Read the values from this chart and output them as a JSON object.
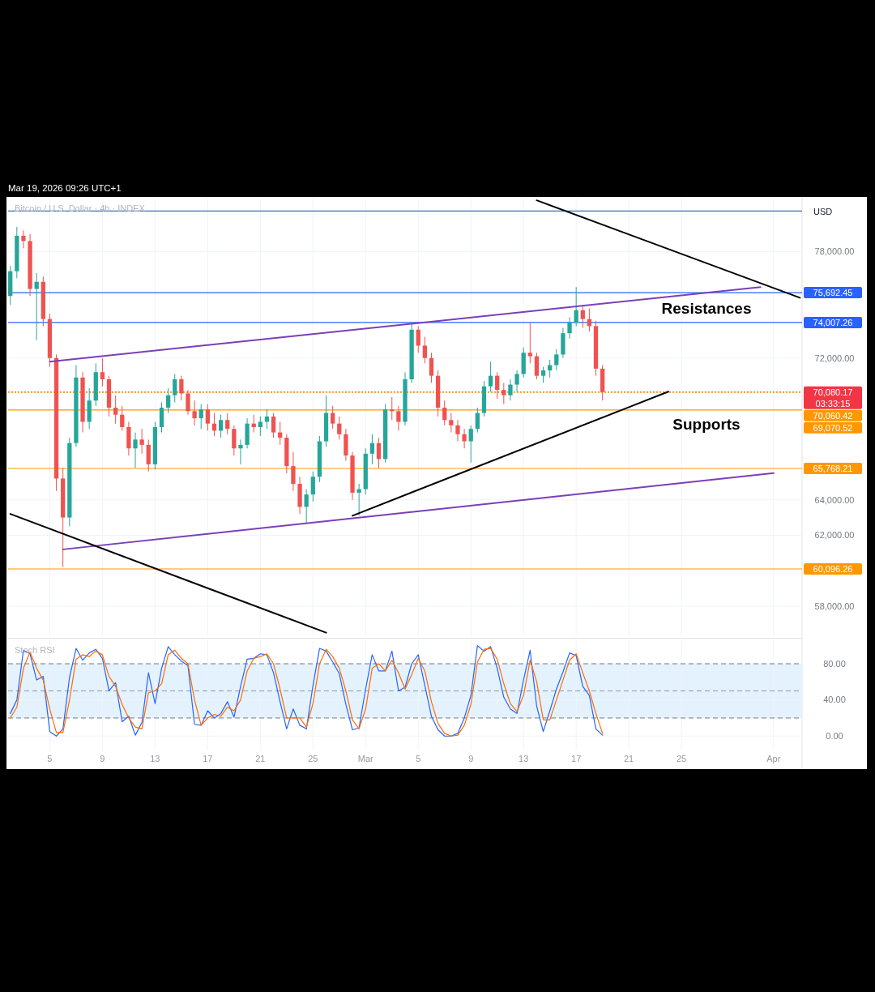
{
  "chart_data": [
    {
      "type": "candlestick",
      "title": "Bitcoin / U.S. Dollar · 4h · INDEX",
      "ylabel": "USD",
      "tick_labels": "y",
      "grid": true,
      "xlim": [
        "2026-02-01T20:00",
        "2026-04-03T04:00"
      ],
      "ylim": [
        56300,
        81000
      ],
      "xticks": [
        "2026-02-05",
        "2026-02-09",
        "2026-02-13",
        "2026-02-17",
        "2026-02-21",
        "2026-02-25",
        "2026-03-01",
        "2026-03-05",
        "2026-03-09",
        "2026-03-13",
        "2026-03-17",
        "2026-03-21",
        "2026-03-25",
        "2026-04-01"
      ],
      "yticks": [
        {
          "value": 58000,
          "label": "58,000.00"
        },
        {
          "value": 62000,
          "label": "62,000.00"
        },
        {
          "value": 64000,
          "label": "64,000.00"
        },
        {
          "value": 72000,
          "label": "72,000.00"
        },
        {
          "value": 78000,
          "label": "78,000.00"
        }
      ],
      "x": [
        "2026-02-02T00:00",
        "2026-02-02T12:00",
        "2026-02-03T00:00",
        "2026-02-03T12:00",
        "2026-02-04T00:00",
        "2026-02-04T12:00",
        "2026-02-05T00:00",
        "2026-02-05T12:00",
        "2026-02-06T00:00",
        "2026-02-06T12:00",
        "2026-02-07T00:00",
        "2026-02-07T12:00",
        "2026-02-08T00:00",
        "2026-02-08T12:00",
        "2026-02-09T00:00",
        "2026-02-09T12:00",
        "2026-02-10T00:00",
        "2026-02-10T12:00",
        "2026-02-11T00:00",
        "2026-02-11T12:00",
        "2026-02-12T00:00",
        "2026-02-12T12:00",
        "2026-02-13T00:00",
        "2026-02-13T12:00",
        "2026-02-14T00:00",
        "2026-02-14T12:00",
        "2026-02-15T00:00",
        "2026-02-15T12:00",
        "2026-02-16T00:00",
        "2026-02-16T12:00",
        "2026-02-17T00:00",
        "2026-02-17T12:00",
        "2026-02-18T00:00",
        "2026-02-18T12:00",
        "2026-02-19T00:00",
        "2026-02-19T12:00",
        "2026-02-20T00:00",
        "2026-02-20T12:00",
        "2026-02-21T00:00",
        "2026-02-21T12:00",
        "2026-02-22T00:00",
        "2026-02-22T12:00",
        "2026-02-23T00:00",
        "2026-02-23T12:00",
        "2026-02-24T00:00",
        "2026-02-24T12:00",
        "2026-02-25T00:00",
        "2026-02-25T12:00",
        "2026-02-26T00:00",
        "2026-02-26T12:00",
        "2026-02-27T00:00",
        "2026-02-27T12:00",
        "2026-02-28T00:00",
        "2026-02-28T12:00",
        "2026-03-01T00:00",
        "2026-03-01T12:00",
        "2026-03-02T00:00",
        "2026-03-02T12:00",
        "2026-03-03T00:00",
        "2026-03-03T12:00",
        "2026-03-04T00:00",
        "2026-03-04T12:00",
        "2026-03-05T00:00",
        "2026-03-05T12:00",
        "2026-03-06T00:00",
        "2026-03-06T12:00",
        "2026-03-07T00:00",
        "2026-03-07T12:00",
        "2026-03-08T00:00",
        "2026-03-08T12:00",
        "2026-03-09T00:00",
        "2026-03-09T12:00",
        "2026-03-10T00:00",
        "2026-03-10T12:00",
        "2026-03-11T00:00",
        "2026-03-11T12:00",
        "2026-03-12T00:00",
        "2026-03-12T12:00",
        "2026-03-13T00:00",
        "2026-03-13T12:00",
        "2026-03-14T00:00",
        "2026-03-14T12:00",
        "2026-03-15T00:00",
        "2026-03-15T12:00",
        "2026-03-16T00:00",
        "2026-03-16T12:00",
        "2026-03-17T00:00",
        "2026-03-17T12:00",
        "2026-03-18T00:00",
        "2026-03-18T12:00",
        "2026-03-19T00:00"
      ],
      "ohlc": [
        [
          75500,
          77200,
          75000,
          76900
        ],
        [
          76900,
          79400,
          76500,
          78900
        ],
        [
          78900,
          79200,
          78200,
          78600
        ],
        [
          78600,
          79000,
          75500,
          75900
        ],
        [
          75900,
          76800,
          73000,
          76300
        ],
        [
          76300,
          76600,
          73800,
          74200
        ],
        [
          74200,
          74500,
          71500,
          72000
        ],
        [
          72000,
          72200,
          64500,
          65200
        ],
        [
          65200,
          65800,
          60200,
          63000
        ],
        [
          63000,
          67500,
          62500,
          67200
        ],
        [
          67200,
          71600,
          67000,
          70900
        ],
        [
          70900,
          71200,
          67800,
          68400
        ],
        [
          68400,
          70300,
          68000,
          69600
        ],
        [
          69600,
          71700,
          69300,
          71200
        ],
        [
          71200,
          72000,
          70400,
          70800
        ],
        [
          70800,
          71000,
          68700,
          69200
        ],
        [
          69200,
          69900,
          68300,
          68800
        ],
        [
          68800,
          69300,
          67900,
          68100
        ],
        [
          68100,
          68400,
          66500,
          66900
        ],
        [
          66900,
          67800,
          65800,
          67400
        ],
        [
          67400,
          68000,
          66600,
          67100
        ],
        [
          67100,
          67400,
          65600,
          66000
        ],
        [
          66000,
          68400,
          65700,
          68100
        ],
        [
          68100,
          69500,
          67800,
          69200
        ],
        [
          69200,
          70300,
          68900,
          69900
        ],
        [
          69900,
          71100,
          69500,
          70800
        ],
        [
          70800,
          71000,
          69600,
          70000
        ],
        [
          70000,
          70200,
          68800,
          69000
        ],
        [
          69000,
          69600,
          68200,
          68600
        ],
        [
          68600,
          69400,
          68000,
          69100
        ],
        [
          69100,
          69400,
          67900,
          68300
        ],
        [
          68300,
          68900,
          67600,
          67900
        ],
        [
          67900,
          68800,
          67500,
          68500
        ],
        [
          68500,
          68900,
          67700,
          68000
        ],
        [
          68000,
          68200,
          66500,
          66900
        ],
        [
          66900,
          67400,
          66000,
          67100
        ],
        [
          67100,
          68600,
          66900,
          68300
        ],
        [
          68300,
          68800,
          67800,
          68100
        ],
        [
          68100,
          68700,
          67600,
          68400
        ],
        [
          68400,
          69100,
          68000,
          68700
        ],
        [
          68700,
          68900,
          67500,
          67800
        ],
        [
          67800,
          68400,
          67100,
          67500
        ],
        [
          67500,
          67700,
          65500,
          65900
        ],
        [
          65900,
          66700,
          64500,
          64900
        ],
        [
          64900,
          65300,
          63200,
          63600
        ],
        [
          63600,
          64600,
          62700,
          64300
        ],
        [
          64300,
          65600,
          63900,
          65300
        ],
        [
          65300,
          67600,
          65000,
          67300
        ],
        [
          67300,
          69900,
          67000,
          68900
        ],
        [
          68900,
          69300,
          68000,
          68300
        ],
        [
          68300,
          68700,
          67400,
          67700
        ],
        [
          67700,
          68000,
          66200,
          66500
        ],
        [
          66500,
          66700,
          64000,
          64400
        ],
        [
          64400,
          64900,
          63100,
          64600
        ],
        [
          64600,
          66900,
          64300,
          66600
        ],
        [
          66600,
          67700,
          66000,
          67200
        ],
        [
          67200,
          67500,
          65800,
          66300
        ],
        [
          66300,
          69400,
          66100,
          69100
        ],
        [
          69100,
          69800,
          68500,
          69000
        ],
        [
          69000,
          69300,
          67900,
          68400
        ],
        [
          68400,
          71200,
          68200,
          70800
        ],
        [
          70800,
          74000,
          70600,
          73600
        ],
        [
          73600,
          73800,
          72300,
          72700
        ],
        [
          72700,
          73200,
          71700,
          72000
        ],
        [
          72000,
          72300,
          70600,
          71000
        ],
        [
          71000,
          71300,
          68700,
          69200
        ],
        [
          69200,
          69600,
          68200,
          68500
        ],
        [
          68500,
          68900,
          67800,
          68200
        ],
        [
          68200,
          68500,
          67300,
          67700
        ],
        [
          67700,
          68000,
          66900,
          67300
        ],
        [
          67300,
          68200,
          66100,
          68000
        ],
        [
          68000,
          69200,
          67800,
          68900
        ],
        [
          68900,
          70700,
          68700,
          70400
        ],
        [
          70400,
          71800,
          70100,
          71000
        ],
        [
          71000,
          71200,
          69700,
          70200
        ],
        [
          70200,
          70600,
          69400,
          69900
        ],
        [
          69900,
          70800,
          69600,
          70500
        ],
        [
          70500,
          71300,
          70100,
          71100
        ],
        [
          71100,
          72600,
          70900,
          72300
        ],
        [
          72300,
          74000,
          71700,
          72100
        ],
        [
          72100,
          72300,
          70800,
          71000
        ],
        [
          71000,
          71500,
          70600,
          71300
        ],
        [
          71300,
          71900,
          70900,
          71600
        ],
        [
          71600,
          72500,
          71300,
          72200
        ],
        [
          72200,
          73700,
          72000,
          73400
        ],
        [
          73400,
          74300,
          73100,
          74000
        ],
        [
          74000,
          76000,
          73800,
          74700
        ],
        [
          74700,
          75000,
          73700,
          74200
        ],
        [
          74200,
          74800,
          73500,
          73800
        ],
        [
          73800,
          74100,
          71000,
          71400
        ],
        [
          71400,
          71600,
          69600,
          70080.17
        ]
      ],
      "colors": [
        "#26a69a",
        "#26a69a",
        "#ef5350",
        "#ef5350",
        "#26a69a",
        "#ef5350",
        "#ef5350",
        "#ef5350",
        "#ef5350",
        "#26a69a",
        "#26a69a",
        "#ef5350",
        "#26a69a",
        "#26a69a",
        "#ef5350",
        "#ef5350",
        "#ef5350",
        "#ef5350",
        "#ef5350",
        "#26a69a",
        "#ef5350",
        "#ef5350",
        "#26a69a",
        "#26a69a",
        "#26a69a",
        "#26a69a",
        "#ef5350",
        "#ef5350",
        "#ef5350",
        "#26a69a",
        "#ef5350",
        "#ef5350",
        "#26a69a",
        "#ef5350",
        "#ef5350",
        "#26a69a",
        "#26a69a",
        "#ef5350",
        "#26a69a",
        "#26a69a",
        "#ef5350",
        "#ef5350",
        "#ef5350",
        "#ef5350",
        "#ef5350",
        "#26a69a",
        "#26a69a",
        "#26a69a",
        "#26a69a",
        "#ef5350",
        "#ef5350",
        "#ef5350",
        "#ef5350",
        "#26a69a",
        "#26a69a",
        "#26a69a",
        "#ef5350",
        "#26a69a",
        "#ef5350",
        "#ef5350",
        "#26a69a",
        "#26a69a",
        "#ef5350",
        "#ef5350",
        "#ef5350",
        "#ef5350",
        "#ef5350",
        "#ef5350",
        "#ef5350",
        "#ef5350",
        "#26a69a",
        "#26a69a",
        "#26a69a",
        "#26a69a",
        "#ef5350",
        "#ef5350",
        "#26a69a",
        "#26a69a",
        "#26a69a",
        "#ef5350",
        "#ef5350",
        "#26a69a",
        "#26a69a",
        "#26a69a",
        "#26a69a",
        "#26a69a",
        "#26a69a",
        "#ef5350",
        "#ef5350",
        "#ef5350",
        "#ef5350"
      ],
      "series": [
        {
          "type": "line",
          "color": "#7b3fb8",
          "x": [
            "2026-02-05",
            "2026-03-31"
          ],
          "values": [
            71800,
            76000
          ]
        },
        {
          "type": "line",
          "color": "#7b3fb8",
          "x": [
            "2026-02-06",
            "2026-04-01"
          ],
          "values": [
            61200,
            65500
          ]
        },
        {
          "type": "line",
          "color": "#000000",
          "x": [
            "2026-03-14",
            "2026-04-03"
          ],
          "values": [
            80900,
            75400
          ]
        },
        {
          "type": "line",
          "color": "#000000",
          "x": [
            "2026-02-02",
            "2026-02-26"
          ],
          "values": [
            63200,
            56500
          ]
        },
        {
          "type": "line",
          "color": "#000000",
          "x": [
            "2026-02-28",
            "2026-03-24"
          ],
          "values": [
            63100,
            70100
          ]
        }
      ],
      "ref_lines": [
        {
          "axis": "y",
          "value": 80300,
          "label": null,
          "color": "#3a6fb0"
        },
        {
          "axis": "y",
          "value": 75692.45,
          "label": "75,692.45",
          "color": "#2962ff"
        },
        {
          "axis": "y",
          "value": 74007.26,
          "label": "74,007.26",
          "color": "#2962ff"
        },
        {
          "axis": "y",
          "value": 70080.17,
          "label": "70,080.17\n03:33:15",
          "color": "#f23645",
          "line_style": "dotted"
        },
        {
          "axis": "y",
          "value": 70060.42,
          "label": "70,060.42",
          "color": "#ff9800",
          "line_style": "dotted"
        },
        {
          "axis": "y",
          "value": 69070.52,
          "label": "69,070.52",
          "color": "#ff9800"
        },
        {
          "axis": "y",
          "value": 65768.21,
          "label": "65,768.21",
          "color": "#ff9800"
        },
        {
          "axis": "y",
          "value": 60096.26,
          "label": "60,096.26",
          "color": "#ff9800"
        }
      ],
      "annotations": [
        "Mar 19, 2026 09:26 UTC+1",
        "Resistances",
        "Supports"
      ]
    },
    {
      "type": "line",
      "title": "Stoch RSI",
      "grid": true,
      "xlim": [
        "2026-02-01T20:00",
        "2026-04-03T04:00"
      ],
      "ylim": [
        -15,
        106
      ],
      "xticks": [
        {
          "value": "2026-02-05",
          "label": "5"
        },
        {
          "value": "2026-02-09",
          "label": "9"
        },
        {
          "value": "2026-02-13",
          "label": "13"
        },
        {
          "value": "2026-02-17",
          "label": "17"
        },
        {
          "value": "2026-02-21",
          "label": "21"
        },
        {
          "value": "2026-02-25",
          "label": "25"
        },
        {
          "value": "2026-03-01",
          "label": "Mar"
        },
        {
          "value": "2026-03-05",
          "label": "5"
        },
        {
          "value": "2026-03-09",
          "label": "9"
        },
        {
          "value": "2026-03-13",
          "label": "13"
        },
        {
          "value": "2026-03-17",
          "label": "17"
        },
        {
          "value": "2026-03-21",
          "label": "21"
        },
        {
          "value": "2026-03-25",
          "label": "25"
        },
        {
          "value": "2026-04-01",
          "label": "Apr"
        }
      ],
      "yticks": [
        {
          "value": 0,
          "label": "0.00"
        },
        {
          "value": 40,
          "label": "40.00"
        },
        {
          "value": 80,
          "label": "80.00"
        }
      ],
      "x": [
        "2026-02-02T00:00",
        "2026-02-02T12:00",
        "2026-02-03T00:00",
        "2026-02-03T12:00",
        "2026-02-04T00:00",
        "2026-02-04T12:00",
        "2026-02-05T00:00",
        "2026-02-05T12:00",
        "2026-02-06T00:00",
        "2026-02-06T12:00",
        "2026-02-07T00:00",
        "2026-02-07T12:00",
        "2026-02-08T00:00",
        "2026-02-08T12:00",
        "2026-02-09T00:00",
        "2026-02-09T12:00",
        "2026-02-10T00:00",
        "2026-02-10T12:00",
        "2026-02-11T00:00",
        "2026-02-11T12:00",
        "2026-02-12T00:00",
        "2026-02-12T12:00",
        "2026-02-13T00:00",
        "2026-02-13T12:00",
        "2026-02-14T00:00",
        "2026-02-14T12:00",
        "2026-02-15T00:00",
        "2026-02-15T12:00",
        "2026-02-16T00:00",
        "2026-02-16T12:00",
        "2026-02-17T00:00",
        "2026-02-17T12:00",
        "2026-02-18T00:00",
        "2026-02-18T12:00",
        "2026-02-19T00:00",
        "2026-02-19T12:00",
        "2026-02-20T00:00",
        "2026-02-20T12:00",
        "2026-02-21T00:00",
        "2026-02-21T12:00",
        "2026-02-22T00:00",
        "2026-02-22T12:00",
        "2026-02-23T00:00",
        "2026-02-23T12:00",
        "2026-02-24T00:00",
        "2026-02-24T12:00",
        "2026-02-25T00:00",
        "2026-02-25T12:00",
        "2026-02-26T00:00",
        "2026-02-26T12:00",
        "2026-02-27T00:00",
        "2026-02-27T12:00",
        "2026-02-28T00:00",
        "2026-02-28T12:00",
        "2026-03-01T00:00",
        "2026-03-01T12:00",
        "2026-03-02T00:00",
        "2026-03-02T12:00",
        "2026-03-03T00:00",
        "2026-03-03T12:00",
        "2026-03-04T00:00",
        "2026-03-04T12:00",
        "2026-03-05T00:00",
        "2026-03-05T12:00",
        "2026-03-06T00:00",
        "2026-03-06T12:00",
        "2026-03-07T00:00",
        "2026-03-07T12:00",
        "2026-03-08T00:00",
        "2026-03-08T12:00",
        "2026-03-09T00:00",
        "2026-03-09T12:00",
        "2026-03-10T00:00",
        "2026-03-10T12:00",
        "2026-03-11T00:00",
        "2026-03-11T12:00",
        "2026-03-12T00:00",
        "2026-03-12T12:00",
        "2026-03-13T00:00",
        "2026-03-13T12:00",
        "2026-03-14T00:00",
        "2026-03-14T12:00",
        "2026-03-15T00:00",
        "2026-03-15T12:00",
        "2026-03-16T00:00",
        "2026-03-16T12:00",
        "2026-03-17T00:00",
        "2026-03-17T12:00",
        "2026-03-18T00:00",
        "2026-03-18T12:00",
        "2026-03-19T00:00"
      ],
      "series": [
        {
          "color": "#2962ff",
          "values": [
            25,
            40,
            95,
            91,
            62,
            66,
            5,
            0,
            8,
            65,
            97,
            84,
            92,
            96,
            86,
            50,
            59,
            16,
            22,
            1,
            15,
            70,
            36,
            75,
            99,
            90,
            83,
            78,
            13,
            12,
            28,
            20,
            25,
            38,
            21,
            55,
            85,
            86,
            91,
            90,
            70,
            38,
            8,
            30,
            12,
            8,
            56,
            97,
            94,
            82,
            69,
            35,
            7,
            9,
            52,
            90,
            72,
            72,
            94,
            50,
            54,
            80,
            90,
            56,
            22,
            7,
            0,
            0,
            3,
            20,
            45,
            100,
            94,
            99,
            75,
            43,
            30,
            25,
            62,
            95,
            33,
            5,
            28,
            52,
            71,
            92,
            89,
            55,
            45,
            8,
            1
          ]
        },
        {
          "color": "#ff6d00",
          "values": [
            20,
            32,
            75,
            93,
            75,
            62,
            30,
            4,
            4,
            40,
            85,
            90,
            88,
            94,
            90,
            66,
            55,
            35,
            20,
            10,
            8,
            48,
            50,
            58,
            90,
            95,
            86,
            80,
            40,
            12,
            20,
            24,
            22,
            32,
            28,
            40,
            72,
            86,
            88,
            91,
            80,
            52,
            20,
            20,
            20,
            10,
            36,
            80,
            96,
            88,
            75,
            50,
            18,
            8,
            30,
            75,
            80,
            72,
            84,
            70,
            52,
            68,
            86,
            72,
            38,
            14,
            3,
            0,
            1,
            12,
            35,
            82,
            96,
            97,
            85,
            58,
            36,
            27,
            45,
            84,
            60,
            18,
            18,
            40,
            62,
            84,
            91,
            70,
            50,
            25,
            3
          ]
        }
      ],
      "bands": [
        {
          "axis": "y",
          "from": 20,
          "to": 80,
          "color": "#e3f2fd"
        }
      ],
      "ref_lines": [
        {
          "axis": "y",
          "value": 80,
          "label": null,
          "color": "#787b86",
          "line_style": "dashed"
        },
        {
          "axis": "y",
          "value": 50,
          "label": null,
          "color": "#9598a1",
          "line_style": "dashed"
        },
        {
          "axis": "y",
          "value": 20,
          "label": null,
          "color": "#787b86",
          "line_style": "dashed"
        }
      ]
    }
  ]
}
